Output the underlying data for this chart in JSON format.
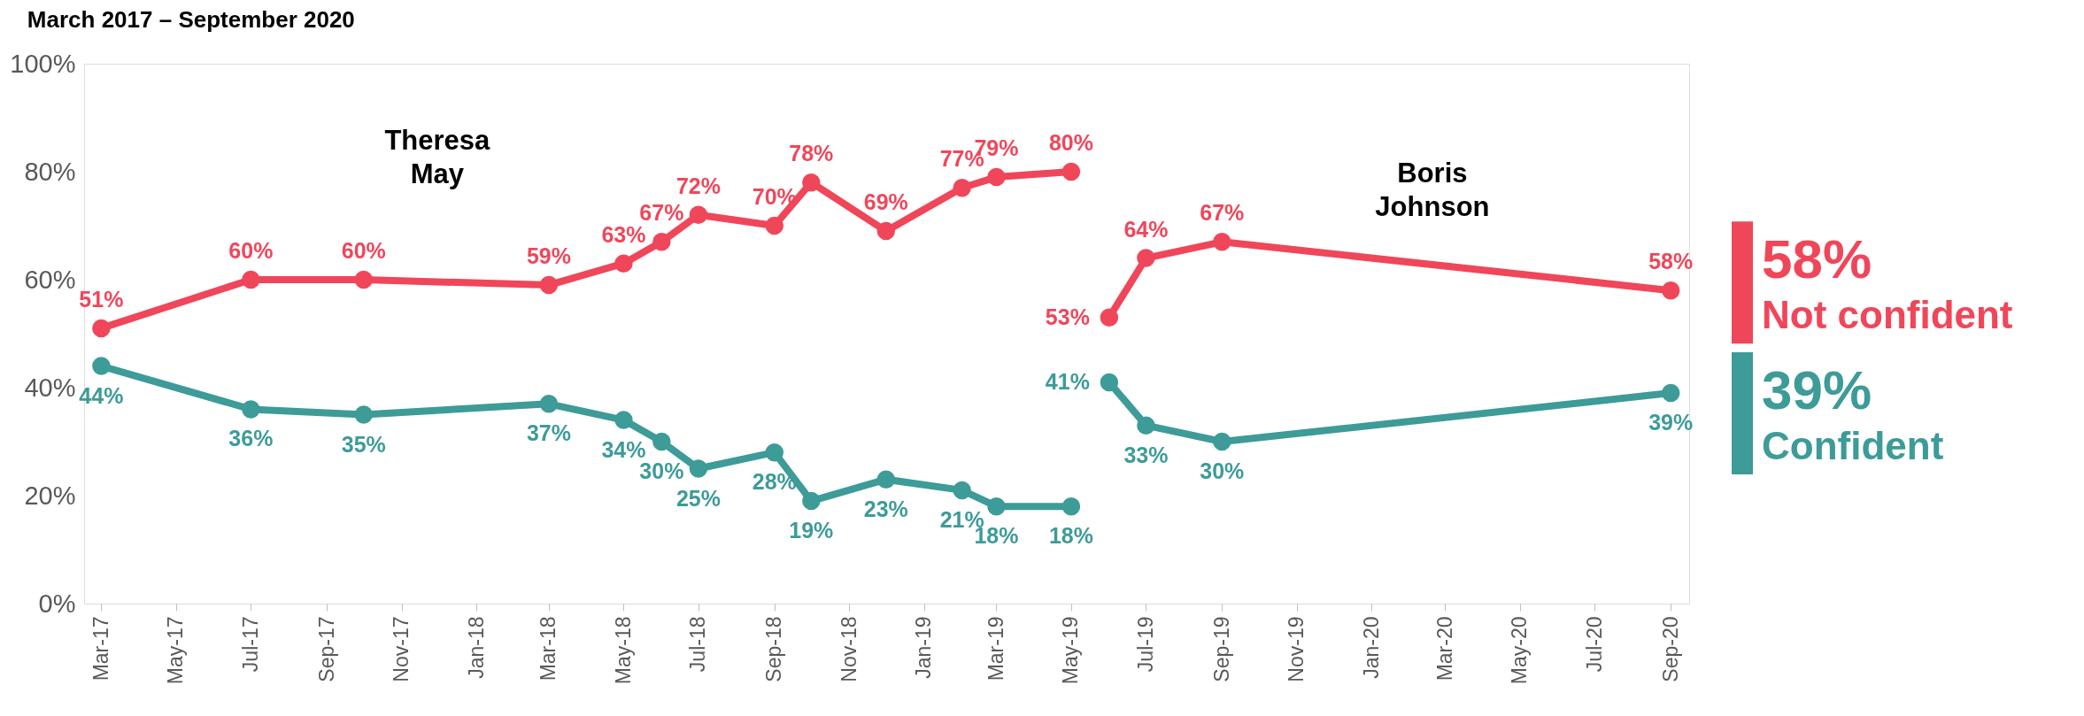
{
  "chart_data": {
    "type": "line",
    "title": "March 2017 – September 2020",
    "series": [
      {
        "color": "#f0465a",
        "x": [
          "2017-03",
          "2017-07",
          "2017-10",
          "2018-03",
          "2018-05",
          "2018-06",
          "2018-07",
          "2018-09",
          "2018-10",
          "2018-12",
          "2019-02",
          "2019-03",
          "2019-05"
        ],
        "values": [
          51,
          60,
          60,
          59,
          63,
          67,
          72,
          70,
          78,
          69,
          77,
          79,
          80
        ],
        "value_labels": [
          "51%",
          "60%",
          "60%",
          "59%",
          "63%",
          "67%",
          "72%",
          "70%",
          "78%",
          "69%",
          "77%",
          "79%",
          "80%"
        ]
      },
      {
        "name": "Not confident",
        "color": "#f0465a",
        "x": [
          "2019-06",
          "2019-07",
          "2019-09",
          "2020-09"
        ],
        "values": [
          53,
          64,
          67,
          58
        ],
        "value_labels": [
          "53%",
          "64%",
          "67%",
          "58%"
        ]
      },
      {
        "color": "#3d9b98",
        "x": [
          "2017-03",
          "2017-07",
          "2017-10",
          "2018-03",
          "2018-05",
          "2018-06",
          "2018-07",
          "2018-09",
          "2018-10",
          "2018-12",
          "2019-02",
          "2019-03",
          "2019-05"
        ],
        "values": [
          44,
          36,
          35,
          37,
          34,
          30,
          25,
          28,
          19,
          23,
          21,
          18,
          18
        ],
        "value_labels": [
          "44%",
          "36%",
          "35%",
          "37%",
          "34%",
          "30%",
          "25%",
          "28%",
          "19%",
          "23%",
          "21%",
          "18%",
          "18%"
        ]
      },
      {
        "name": "Confident",
        "color": "#3d9b98",
        "x": [
          "2019-06",
          "2019-07",
          "2019-09",
          "2020-09"
        ],
        "values": [
          41,
          33,
          30,
          39
        ],
        "value_labels": [
          "41%",
          "33%",
          "30%",
          "39%"
        ]
      }
    ],
    "annotations": [
      "Theresa May",
      "Boris Johnson",
      "58%",
      "39%"
    ],
    "xlim": [
      "2017-02-15",
      "2020-09-16"
    ],
    "xticks": [
      {
        "value": "2017-03",
        "label": "Mar-17"
      },
      {
        "value": "2017-05",
        "label": "May-17"
      },
      {
        "value": "2017-07",
        "label": "Jul-17"
      },
      {
        "value": "2017-09",
        "label": "Sep-17"
      },
      {
        "value": "2017-11",
        "label": "Nov-17"
      },
      {
        "value": "2018-01",
        "label": "Jan-18"
      },
      {
        "value": "2018-03",
        "label": "Mar-18"
      },
      {
        "value": "2018-05",
        "label": "May-18"
      },
      {
        "value": "2018-07",
        "label": "Jul-18"
      },
      {
        "value": "2018-09",
        "label": "Sep-18"
      },
      {
        "value": "2018-11",
        "label": "Nov-18"
      },
      {
        "value": "2019-01",
        "label": "Jan-19"
      },
      {
        "value": "2019-03",
        "label": "Mar-19"
      },
      {
        "value": "2019-05",
        "label": "May-19"
      },
      {
        "value": "2019-07",
        "label": "Jul-19"
      },
      {
        "value": "2019-09",
        "label": "Sep-19"
      },
      {
        "value": "2019-11",
        "label": "Nov-19"
      },
      {
        "value": "2020-01",
        "label": "Jan-20"
      },
      {
        "value": "2020-03",
        "label": "Mar-20"
      },
      {
        "value": "2020-05",
        "label": "May-20"
      },
      {
        "value": "2020-07",
        "label": "Jul-20"
      },
      {
        "value": "2020-09",
        "label": "Sep-20"
      }
    ],
    "ylim": [
      0,
      100
    ],
    "yticks": [
      {
        "value": 0,
        "label": "0%"
      },
      {
        "value": 20,
        "label": "20%"
      },
      {
        "value": 40,
        "label": "40%"
      },
      {
        "value": 60,
        "label": "60%"
      },
      {
        "value": 80,
        "label": "80%"
      },
      {
        "value": 100,
        "label": "100%"
      }
    ],
    "grid": false,
    "legend": "right",
    "marker": "circle",
    "line_style": "solid"
  }
}
